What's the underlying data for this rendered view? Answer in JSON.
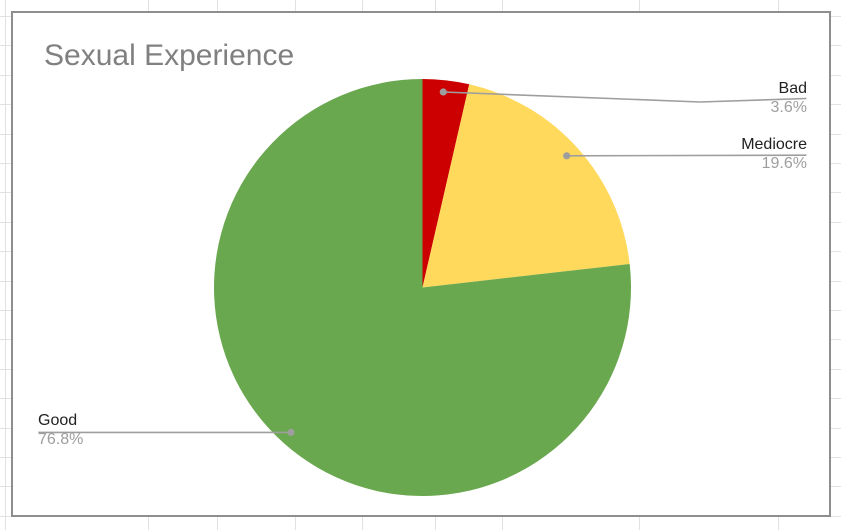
{
  "chart_data": {
    "type": "pie",
    "title": "Sexual Experience",
    "slices": [
      {
        "label": "Bad",
        "value": 3.6,
        "percent_label": "3.6%",
        "color": "#cc0000"
      },
      {
        "label": "Mediocre",
        "value": 19.6,
        "percent_label": "19.6%",
        "color": "#ffd95c"
      },
      {
        "label": "Good",
        "value": 76.8,
        "percent_label": "76.8%",
        "color": "#6aa84f"
      }
    ],
    "start_angle_deg": 0,
    "direction": "clockwise",
    "labels": "outside-with-leader-lines",
    "legend": "none"
  },
  "colors": {
    "title_text": "#808080",
    "label_text": "#212121",
    "percent_text": "#9e9e9e",
    "leader_line": "#9e9e9e",
    "grid_line": "#e2e2e2",
    "card_border": "#8e8e8e",
    "card_background": "#ffffff"
  }
}
